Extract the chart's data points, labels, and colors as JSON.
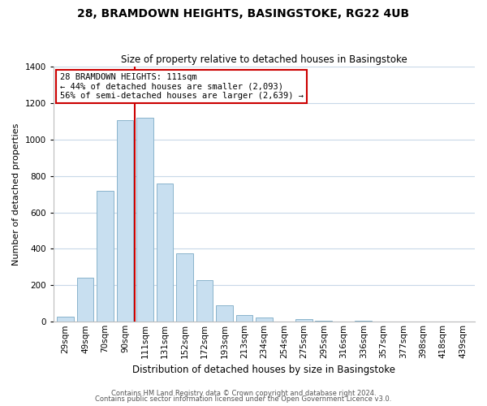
{
  "title": "28, BRAMDOWN HEIGHTS, BASINGSTOKE, RG22 4UB",
  "subtitle": "Size of property relative to detached houses in Basingstoke",
  "xlabel": "Distribution of detached houses by size in Basingstoke",
  "ylabel": "Number of detached properties",
  "bar_labels": [
    "29sqm",
    "49sqm",
    "70sqm",
    "90sqm",
    "111sqm",
    "131sqm",
    "152sqm",
    "172sqm",
    "193sqm",
    "213sqm",
    "234sqm",
    "254sqm",
    "275sqm",
    "295sqm",
    "316sqm",
    "336sqm",
    "357sqm",
    "377sqm",
    "398sqm",
    "418sqm",
    "439sqm"
  ],
  "bar_values": [
    30,
    240,
    720,
    1105,
    1120,
    760,
    375,
    230,
    90,
    35,
    25,
    0,
    15,
    5,
    0,
    5,
    0,
    0,
    0,
    0,
    0
  ],
  "bar_color": "#c8dff0",
  "bar_edge_color": "#8ab4cc",
  "vline_color": "#cc0000",
  "vline_index": 4,
  "ylim": [
    0,
    1400
  ],
  "yticks": [
    0,
    200,
    400,
    600,
    800,
    1000,
    1200,
    1400
  ],
  "annotation_title": "28 BRAMDOWN HEIGHTS: 111sqm",
  "annotation_line1": "← 44% of detached houses are smaller (2,093)",
  "annotation_line2": "56% of semi-detached houses are larger (2,639) →",
  "annotation_box_color": "#ffffff",
  "annotation_box_edge": "#cc0000",
  "footer1": "Contains HM Land Registry data © Crown copyright and database right 2024.",
  "footer2": "Contains public sector information licensed under the Open Government Licence v3.0.",
  "background_color": "#ffffff",
  "grid_color": "#c8d8e8",
  "title_fontsize": 10,
  "subtitle_fontsize": 8.5,
  "ylabel_fontsize": 8,
  "xlabel_fontsize": 8.5,
  "tick_fontsize": 7.5,
  "annot_fontsize": 7.5,
  "footer_fontsize": 6
}
